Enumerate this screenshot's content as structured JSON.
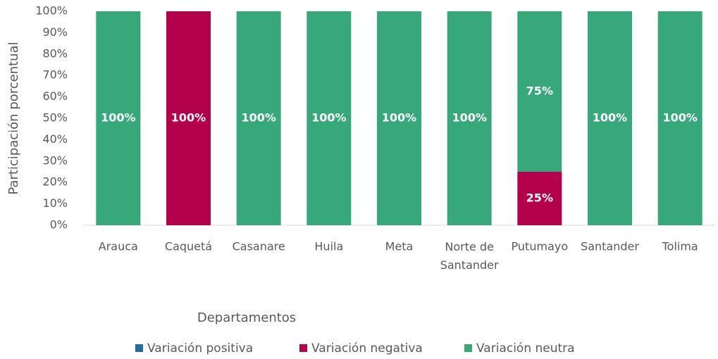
{
  "chart_data": {
    "type": "stacked_bar",
    "y_label": "Participación porcentual",
    "x_label": "Departamentos",
    "categories": [
      "Arauca",
      "Caquetá",
      "Casanare",
      "Huila",
      "Meta",
      "Norte de Santander",
      "Putumayo",
      "Santander",
      "Tolima"
    ],
    "series": [
      {
        "name": "Variación positiva",
        "color": "#1c6f9f",
        "values": [
          0,
          0,
          0,
          0,
          0,
          0,
          0,
          0,
          0
        ]
      },
      {
        "name": "Variación negativa",
        "color": "#b5004b",
        "values": [
          0,
          100,
          0,
          0,
          0,
          0,
          25,
          0,
          0
        ],
        "value_labels": [
          null,
          "100%",
          null,
          null,
          null,
          null,
          "25%",
          null,
          null
        ]
      },
      {
        "name": "Variación neutra",
        "color": "#36a87a",
        "values": [
          100,
          0,
          100,
          100,
          100,
          100,
          75,
          100,
          100
        ],
        "value_labels": [
          "100%",
          null,
          "100%",
          "100%",
          "100%",
          "100%",
          "75%",
          "100%",
          "100%"
        ]
      }
    ],
    "ylim": [
      0,
      100
    ],
    "yticks": [
      {
        "value": 0,
        "label": "0%"
      },
      {
        "value": 10,
        "label": "10%"
      },
      {
        "value": 20,
        "label": "20%"
      },
      {
        "value": 30,
        "label": "30%"
      },
      {
        "value": 40,
        "label": "40%"
      },
      {
        "value": 50,
        "label": "50%"
      },
      {
        "value": 60,
        "label": "60%"
      },
      {
        "value": 70,
        "label": "70%"
      },
      {
        "value": 80,
        "label": "80%"
      },
      {
        "value": 90,
        "label": "90%"
      },
      {
        "value": 100,
        "label": "100%"
      }
    ],
    "grid": false,
    "legend": "bottom"
  }
}
